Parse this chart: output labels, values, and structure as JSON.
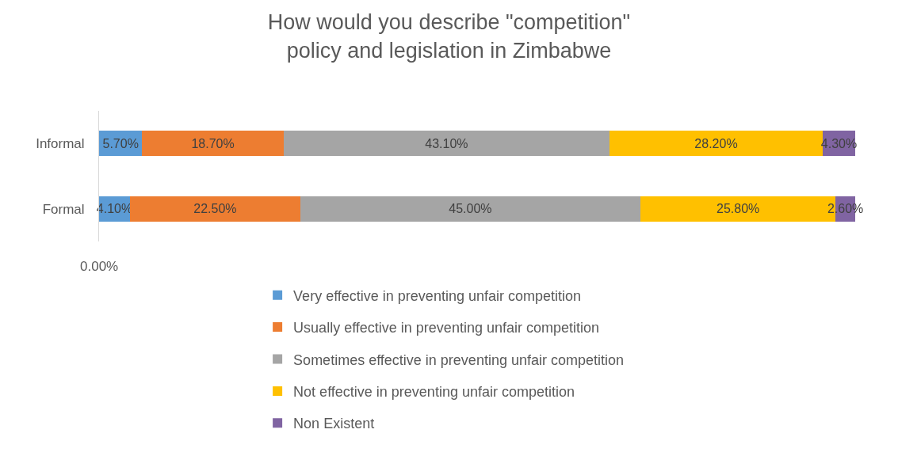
{
  "chart_data": {
    "type": "bar",
    "orientation": "horizontal",
    "stacked": true,
    "title": "How would you describe \"competition\"\npolicy and legislation in Zimbabwe",
    "categories": [
      "Informal",
      "Formal"
    ],
    "series": [
      {
        "name": "Very effective in preventing unfair competition",
        "color": "#5b9bd5",
        "values": [
          5.7,
          4.1
        ],
        "value_labels": [
          "5.70%",
          "4.10%"
        ]
      },
      {
        "name": "Usually effective in preventing unfair competition",
        "color": "#ed7d31",
        "values": [
          18.7,
          22.5
        ],
        "value_labels": [
          "18.70%",
          "22.50%"
        ]
      },
      {
        "name": "Sometimes effective in preventing unfair competition",
        "color": "#a5a5a5",
        "values": [
          43.1,
          45.0
        ],
        "value_labels": [
          "43.10%",
          "45.00%"
        ]
      },
      {
        "name": "Not effective in preventing unfair competition",
        "color": "#ffc000",
        "values": [
          28.2,
          25.8
        ],
        "value_labels": [
          "28.20%",
          "25.80%"
        ]
      },
      {
        "name": "Non Existent",
        "color": "#8064a2",
        "values": [
          4.3,
          2.6
        ],
        "value_labels": [
          "4.30%",
          "2.60%"
        ]
      }
    ],
    "annotations": [
      "0.00%"
    ],
    "legend": "bottom"
  }
}
